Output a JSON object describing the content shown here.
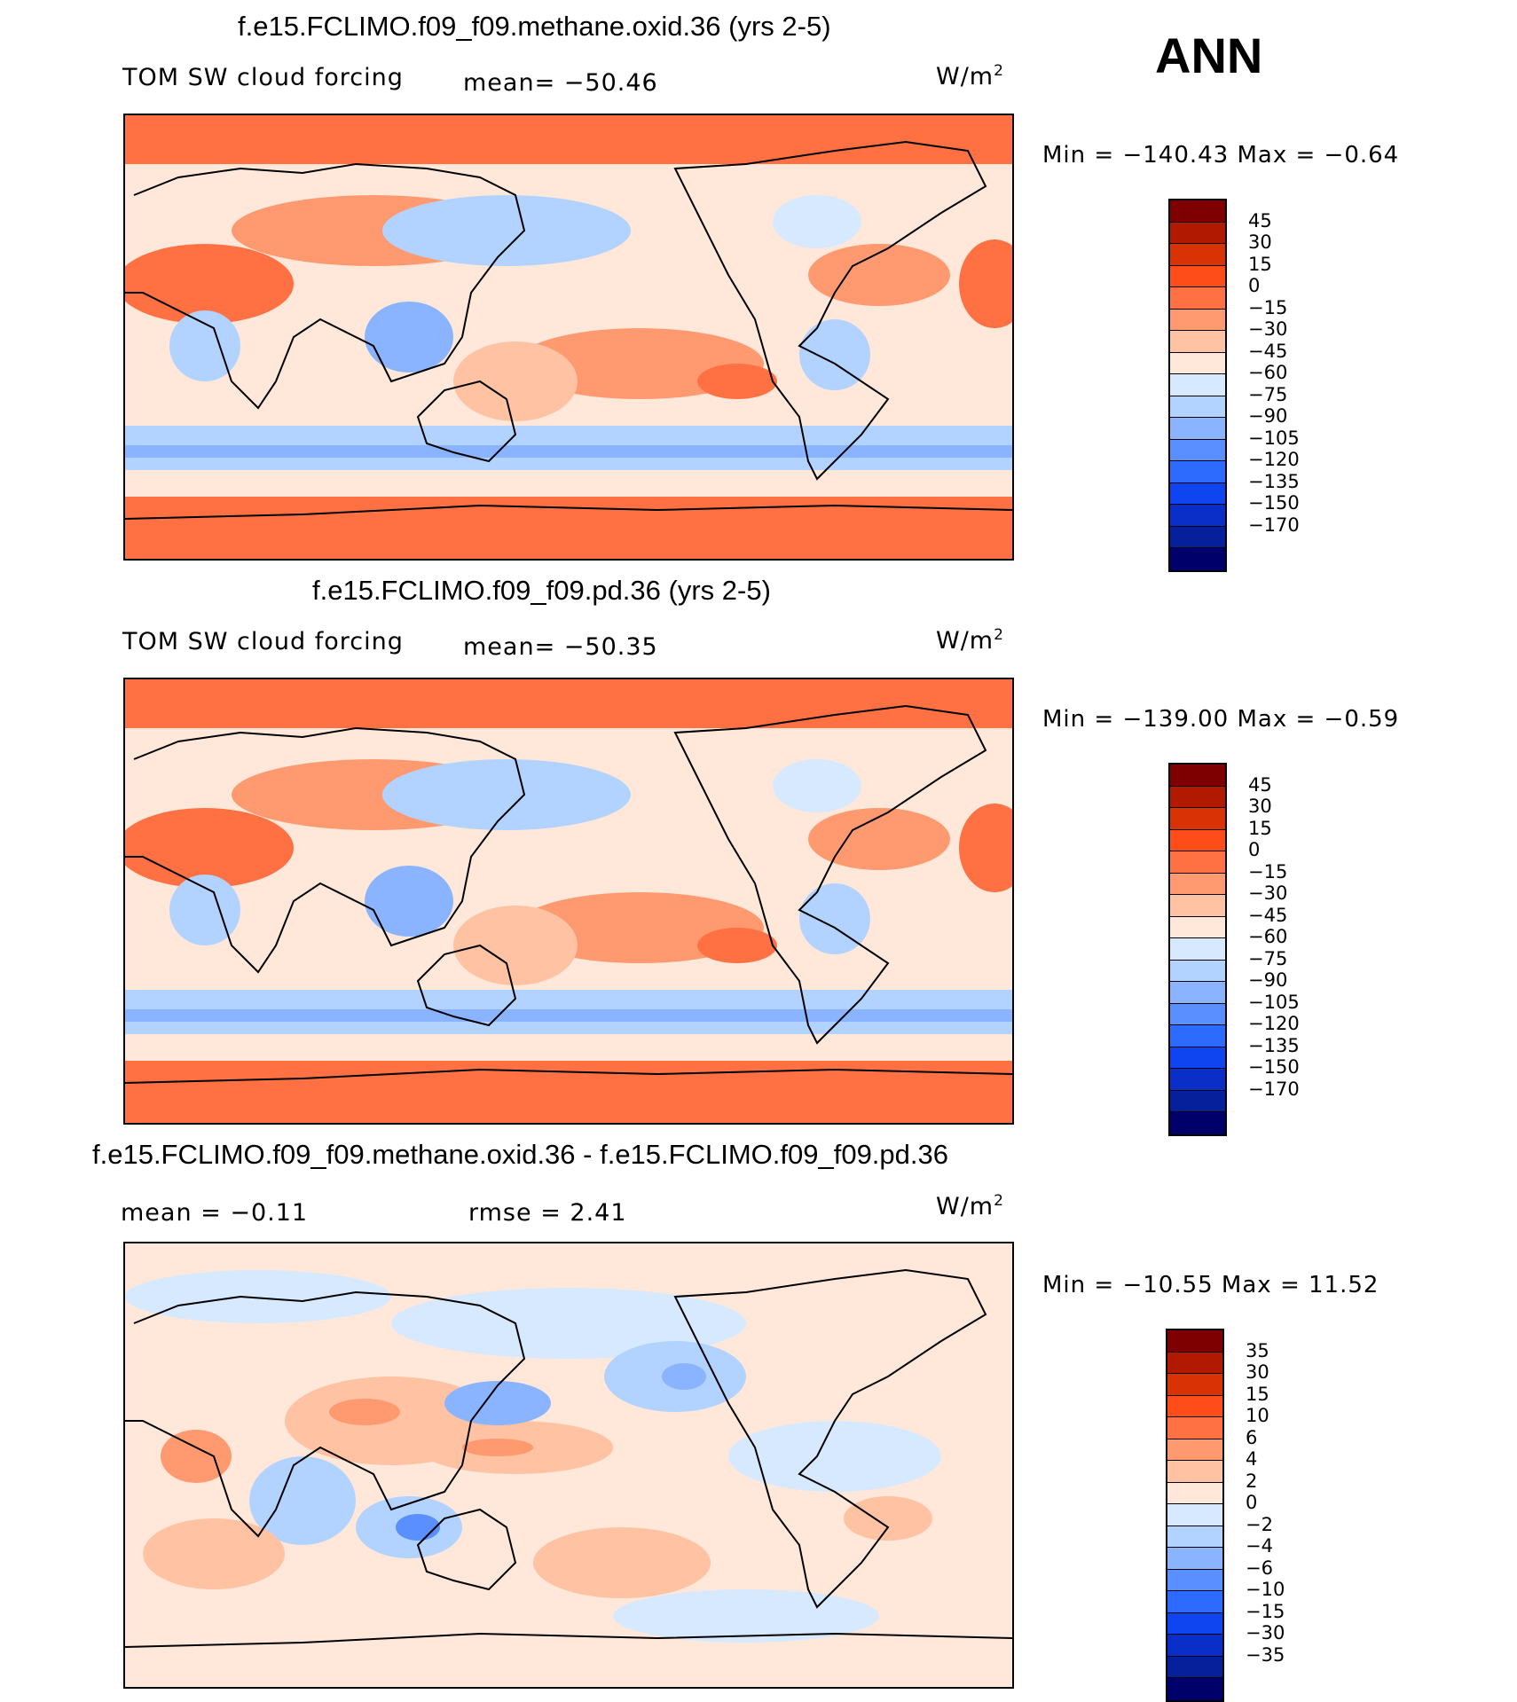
{
  "season": "ANN",
  "colors": {
    "mean_scale": [
      "#7f0000",
      "#b21a00",
      "#d93305",
      "#ff4d1a",
      "#ff7043",
      "#ff9a70",
      "#ffc2a3",
      "#ffe8d9",
      "#d6e9ff",
      "#b2d3ff",
      "#8ab4ff",
      "#5a8fff",
      "#2d6bff",
      "#0f45f0",
      "#0a2fc8",
      "#05209a",
      "#00006b"
    ],
    "diff_scale": [
      "#7f0000",
      "#b21a00",
      "#d93305",
      "#ff4d1a",
      "#ff7043",
      "#ff9a70",
      "#ffc2a3",
      "#ffe8d9",
      "#d6e9ff",
      "#b2d3ff",
      "#8ab4ff",
      "#5a8fff",
      "#2d6bff",
      "#0f45f0",
      "#0a2fc8",
      "#05209a",
      "#00006b"
    ],
    "land_line": "#000000"
  },
  "panels": [
    {
      "title": "f.e15.FCLIMO.f09_f09.methane.oxid.36 (yrs 2-5)",
      "left_label": "TOM SW cloud forcing",
      "mid_label": "mean=  −50.46",
      "units": "W/m",
      "units_sup": "2",
      "minmax": "Min  =  −140.43  Max  =    −0.64",
      "cbar_labels": [
        "45",
        "30",
        "15",
        "0",
        "−15",
        "−30",
        "−45",
        "−60",
        "−75",
        "−90",
        "−105",
        "−120",
        "−135",
        "−150",
        "−170"
      ]
    },
    {
      "title": "f.e15.FCLIMO.f09_f09.pd.36 (yrs 2-5)",
      "left_label": "TOM SW cloud forcing",
      "mid_label": "mean=  −50.35",
      "units": "W/m",
      "units_sup": "2",
      "minmax": "Min  =  −139.00  Max  =    −0.59",
      "cbar_labels": [
        "45",
        "30",
        "15",
        "0",
        "−15",
        "−30",
        "−45",
        "−60",
        "−75",
        "−90",
        "−105",
        "−120",
        "−135",
        "−150",
        "−170"
      ]
    },
    {
      "title": "f.e15.FCLIMO.f09_f09.methane.oxid.36 - f.e15.FCLIMO.f09_f09.pd.36",
      "left_label": "mean  =    −0.11",
      "mid_label": "rmse  =     2.41",
      "units": "W/m",
      "units_sup": "2",
      "minmax": "Min  =  −10.55  Max  =    11.52",
      "cbar_labels": [
        "35",
        "30",
        "15",
        "10",
        "6",
        "4",
        "2",
        "0",
        "−2",
        "−4",
        "−6",
        "−10",
        "−15",
        "−30",
        "−35"
      ]
    }
  ],
  "chart_data": [
    {
      "type": "heatmap",
      "title": "f.e15.FCLIMO.f09_f09.methane.oxid.36 (yrs 2-5)",
      "variable": "TOM SW cloud forcing",
      "units": "W/m2",
      "mean": -50.46,
      "min": -140.43,
      "max": -0.64,
      "contour_levels": [
        45,
        30,
        15,
        0,
        -15,
        -30,
        -45,
        -60,
        -75,
        -90,
        -105,
        -120,
        -135,
        -150,
        -170
      ]
    },
    {
      "type": "heatmap",
      "title": "f.e15.FCLIMO.f09_f09.pd.36 (yrs 2-5)",
      "variable": "TOM SW cloud forcing",
      "units": "W/m2",
      "mean": -50.35,
      "min": -139.0,
      "max": -0.59,
      "contour_levels": [
        45,
        30,
        15,
        0,
        -15,
        -30,
        -45,
        -60,
        -75,
        -90,
        -105,
        -120,
        -135,
        -150,
        -170
      ]
    },
    {
      "type": "heatmap",
      "title": "f.e15.FCLIMO.f09_f09.methane.oxid.36 - f.e15.FCLIMO.f09_f09.pd.36",
      "units": "W/m2",
      "mean": -0.11,
      "rmse": 2.41,
      "min": -10.55,
      "max": 11.52,
      "contour_levels": [
        35,
        30,
        15,
        10,
        6,
        4,
        2,
        0,
        -2,
        -4,
        -6,
        -10,
        -15,
        -30,
        -35
      ]
    }
  ]
}
